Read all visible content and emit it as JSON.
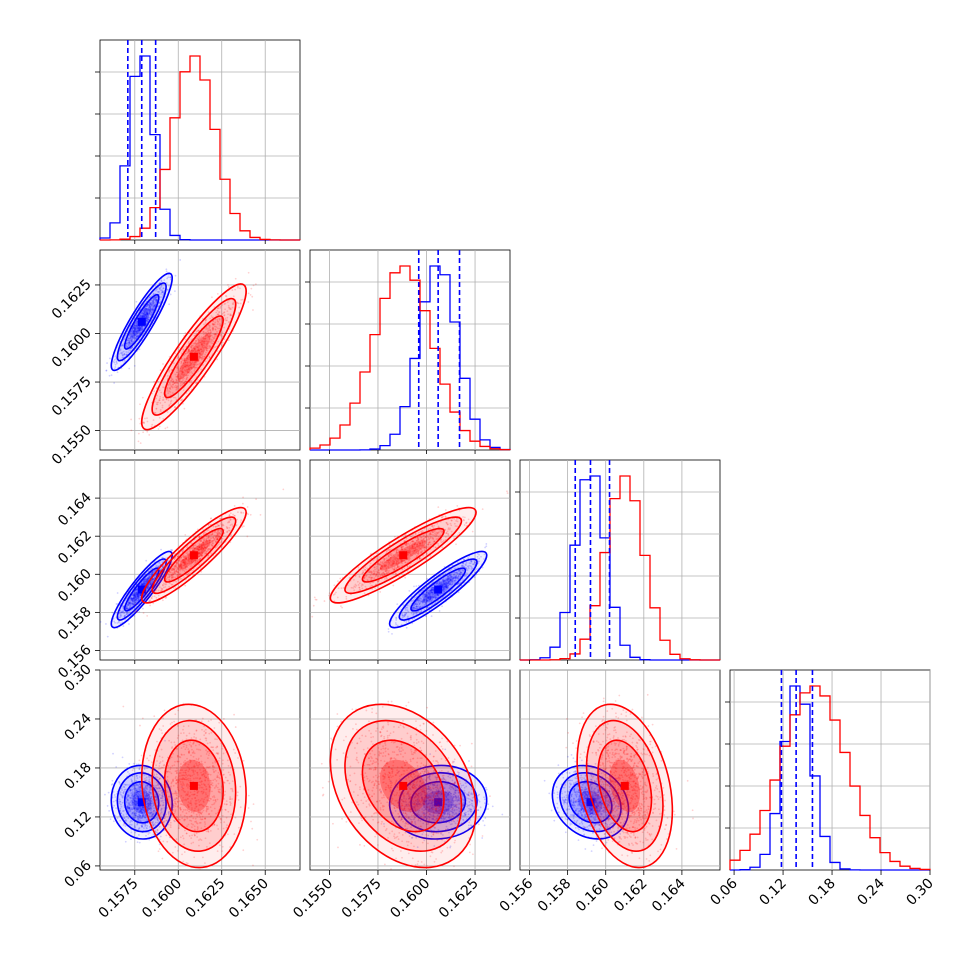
{
  "chart_data": {
    "type": "corner",
    "description_free": true,
    "grid": true,
    "colors": {
      "a": "#0000ff",
      "b": "#ff0000"
    },
    "axes_ranges": [
      [
        0.1555,
        0.167
      ],
      [
        0.154,
        0.1643
      ],
      [
        0.1555,
        0.166
      ],
      [
        0.055,
        0.3
      ]
    ],
    "ticks": [
      {
        "values": [
          0.1575,
          0.16,
          0.1625,
          0.165
        ],
        "labels": [
          "0.1575",
          "0.1600",
          "0.1625",
          "0.1650"
        ]
      },
      {
        "values": [
          0.155,
          0.1575,
          0.16,
          0.1625
        ],
        "labels": [
          "0.1550",
          "0.1575",
          "0.1600",
          "0.1625"
        ]
      },
      {
        "values": [
          0.156,
          0.158,
          0.16,
          0.162,
          0.164
        ],
        "labels": [
          "0.156",
          "0.158",
          "0.160",
          "0.162",
          "0.164"
        ]
      },
      {
        "values": [
          0.06,
          0.12,
          0.18,
          0.24,
          0.3
        ],
        "labels": [
          "0.06",
          "0.12",
          "0.18",
          "0.24",
          "0.30"
        ]
      }
    ],
    "quantiles_series_a": [
      [
        0.1571,
        0.1579,
        0.1587
      ],
      [
        0.1596,
        0.1606,
        0.1617
      ],
      [
        0.1584,
        0.1592,
        0.1602
      ],
      [
        0.118,
        0.136,
        0.156
      ]
    ],
    "series": [
      {
        "name": "",
        "color": "#0000ff",
        "mean": [
          0.1579,
          0.1606,
          0.1592,
          0.138
        ],
        "sd": [
          0.0007,
          0.001,
          0.0008,
          0.018
        ],
        "corr": [
          [
            1,
            0.9,
            0.9,
            -0.05
          ],
          [
            0.9,
            1,
            0.9,
            0.05
          ],
          [
            0.9,
            0.9,
            1,
            -0.2
          ],
          [
            -0.05,
            0.05,
            -0.2,
            1
          ]
        ]
      },
      {
        "name": "",
        "color": "#ff0000",
        "mean": [
          0.1609,
          0.1588,
          0.161,
          0.158
        ],
        "sd": [
          0.0012,
          0.0015,
          0.001,
          0.04
        ],
        "corr": [
          [
            1,
            0.9,
            0.9,
            -0.1
          ],
          [
            0.9,
            1,
            0.9,
            -0.3
          ],
          [
            0.9,
            0.9,
            1,
            -0.3
          ],
          [
            -0.1,
            -0.3,
            -0.3,
            1
          ]
        ]
      }
    ]
  }
}
